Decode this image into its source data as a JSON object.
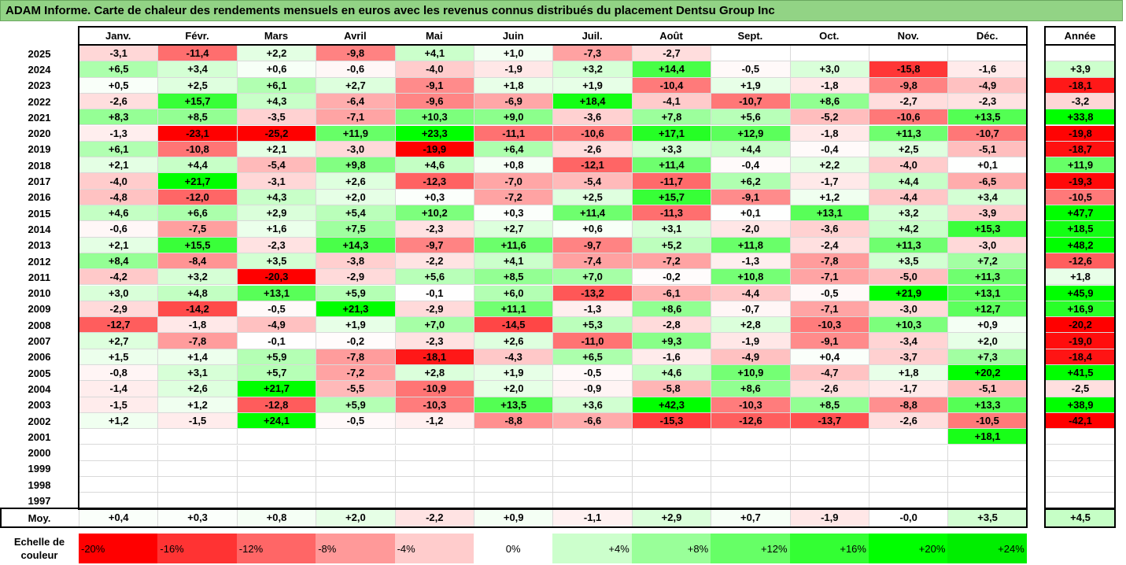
{
  "title": "ADAM Informe. Carte de chaleur des rendements mensuels en euros avec les revenus connus distribués du placement Dentsu Group Inc",
  "chart_data": {
    "type": "heatmap",
    "columns": [
      "Janv.",
      "Févr.",
      "Mars",
      "Avril",
      "Mai",
      "Juin",
      "Juil.",
      "Août",
      "Sept.",
      "Oct.",
      "Nov.",
      "Déc."
    ],
    "year_column_label": "Année",
    "average_label": "Moy.",
    "rows": [
      {
        "year": "2025",
        "months": [
          "-3,1",
          "-11,4",
          "+2,2",
          "-9,8",
          "+4,1",
          "+1,0",
          "-7,3",
          "-2,7",
          "",
          "",
          "",
          ""
        ],
        "annual": ""
      },
      {
        "year": "2024",
        "months": [
          "+6,5",
          "+3,4",
          "+0,6",
          "-0,6",
          "-4,0",
          "-1,9",
          "+3,2",
          "+14,4",
          "-0,5",
          "+3,0",
          "-15,8",
          "-1,6"
        ],
        "annual": "+3,9"
      },
      {
        "year": "2023",
        "months": [
          "+0,5",
          "+2,5",
          "+6,1",
          "+2,7",
          "-9,1",
          "+1,8",
          "+1,9",
          "-10,4",
          "+1,9",
          "-1,8",
          "-9,8",
          "-4,9"
        ],
        "annual": "-18,1"
      },
      {
        "year": "2022",
        "months": [
          "-2,6",
          "+15,7",
          "+4,3",
          "-6,4",
          "-9,6",
          "-6,9",
          "+18,4",
          "-4,1",
          "-10,7",
          "+8,6",
          "-2,7",
          "-2,3"
        ],
        "annual": "-3,2"
      },
      {
        "year": "2021",
        "months": [
          "+8,3",
          "+8,5",
          "-3,5",
          "-7,1",
          "+10,3",
          "+9,0",
          "-3,6",
          "+7,8",
          "+5,6",
          "-5,2",
          "-10,6",
          "+13,5"
        ],
        "annual": "+33,8"
      },
      {
        "year": "2020",
        "months": [
          "-1,3",
          "-23,1",
          "-25,2",
          "+11,9",
          "+23,3",
          "-11,1",
          "-10,6",
          "+17,1",
          "+12,9",
          "-1,8",
          "+11,3",
          "-10,7"
        ],
        "annual": "-19,8"
      },
      {
        "year": "2019",
        "months": [
          "+6,1",
          "-10,8",
          "+2,1",
          "-3,0",
          "-19,9",
          "+6,4",
          "-2,6",
          "+3,3",
          "+4,4",
          "-0,4",
          "+2,5",
          "-5,1"
        ],
        "annual": "-18,7"
      },
      {
        "year": "2018",
        "months": [
          "+2,1",
          "+4,4",
          "-5,4",
          "+9,8",
          "+4,6",
          "+0,8",
          "-12,1",
          "+11,4",
          "-0,4",
          "+2,2",
          "-4,0",
          "+0,1"
        ],
        "annual": "+11,9"
      },
      {
        "year": "2017",
        "months": [
          "-4,0",
          "+21,7",
          "-3,1",
          "+2,6",
          "-12,3",
          "-7,0",
          "-5,4",
          "-11,7",
          "+6,2",
          "-1,7",
          "+4,4",
          "-6,5"
        ],
        "annual": "-19,3"
      },
      {
        "year": "2016",
        "months": [
          "-4,8",
          "-12,0",
          "+4,3",
          "+2,0",
          "+0,3",
          "-7,2",
          "+2,5",
          "+15,7",
          "-9,1",
          "+1,2",
          "-4,4",
          "+3,4"
        ],
        "annual": "-10,5"
      },
      {
        "year": "2015",
        "months": [
          "+4,6",
          "+6,6",
          "+2,9",
          "+5,4",
          "+10,2",
          "+0,3",
          "+11,4",
          "-11,3",
          "+0,1",
          "+13,1",
          "+3,2",
          "-3,9"
        ],
        "annual": "+47,7"
      },
      {
        "year": "2014",
        "months": [
          "-0,6",
          "-7,5",
          "+1,6",
          "+7,5",
          "-2,3",
          "+2,7",
          "+0,6",
          "+3,1",
          "-2,0",
          "-3,6",
          "+4,2",
          "+15,3"
        ],
        "annual": "+18,5"
      },
      {
        "year": "2013",
        "months": [
          "+2,1",
          "+15,5",
          "-2,3",
          "+14,3",
          "-9,7",
          "+11,6",
          "-9,7",
          "+5,2",
          "+11,8",
          "-2,4",
          "+11,3",
          "-3,0"
        ],
        "annual": "+48,2"
      },
      {
        "year": "2012",
        "months": [
          "+8,4",
          "-8,4",
          "+3,5",
          "-3,8",
          "-2,2",
          "+4,1",
          "-7,4",
          "-7,2",
          "-1,3",
          "-7,8",
          "+3,5",
          "+7,2"
        ],
        "annual": "-12,6"
      },
      {
        "year": "2011",
        "months": [
          "-4,2",
          "+3,2",
          "-20,3",
          "-2,9",
          "+5,6",
          "+8,5",
          "+7,0",
          "-0,2",
          "+10,8",
          "-7,1",
          "-5,0",
          "+11,3"
        ],
        "annual": "+1,8"
      },
      {
        "year": "2010",
        "months": [
          "+3,0",
          "+4,8",
          "+13,1",
          "+5,9",
          "-0,1",
          "+6,0",
          "-13,2",
          "-6,1",
          "-4,4",
          "-0,5",
          "+21,9",
          "+13,1"
        ],
        "annual": "+45,9"
      },
      {
        "year": "2009",
        "months": [
          "-2,9",
          "-14,2",
          "-0,5",
          "+21,3",
          "-2,9",
          "+11,1",
          "-1,3",
          "+8,6",
          "-0,7",
          "-7,1",
          "-3,0",
          "+12,7"
        ],
        "annual": "+16,9"
      },
      {
        "year": "2008",
        "months": [
          "-12,7",
          "-1,8",
          "-4,9",
          "+1,9",
          "+7,0",
          "-14,5",
          "+5,3",
          "-2,8",
          "+2,8",
          "-10,3",
          "+10,3",
          "+0,9"
        ],
        "annual": "-20,2"
      },
      {
        "year": "2007",
        "months": [
          "+2,7",
          "-7,8",
          "-0,1",
          "-0,2",
          "-2,3",
          "+2,6",
          "-11,0",
          "+9,3",
          "-1,9",
          "-9,1",
          "-3,4",
          "+2,0"
        ],
        "annual": "-19,0"
      },
      {
        "year": "2006",
        "months": [
          "+1,5",
          "+1,4",
          "+5,9",
          "-7,8",
          "-18,1",
          "-4,3",
          "+6,5",
          "-1,6",
          "-4,9",
          "+0,4",
          "-3,7",
          "+7,3"
        ],
        "annual": "-18,4"
      },
      {
        "year": "2005",
        "months": [
          "-0,8",
          "+3,1",
          "+5,7",
          "-7,2",
          "+2,8",
          "+1,9",
          "-0,5",
          "+4,6",
          "+10,9",
          "-4,7",
          "+1,8",
          "+20,2"
        ],
        "annual": "+41,5"
      },
      {
        "year": "2004",
        "months": [
          "-1,4",
          "+2,6",
          "+21,7",
          "-5,5",
          "-10,9",
          "+2,0",
          "-0,9",
          "-5,8",
          "+8,6",
          "-2,6",
          "-1,7",
          "-5,1"
        ],
        "annual": "-2,5"
      },
      {
        "year": "2003",
        "months": [
          "-1,5",
          "+1,2",
          "-12,8",
          "+5,9",
          "-10,3",
          "+13,5",
          "+3,6",
          "+42,3",
          "-10,3",
          "+8,5",
          "-8,8",
          "+13,3"
        ],
        "annual": "+38,9"
      },
      {
        "year": "2002",
        "months": [
          "+1,2",
          "-1,5",
          "+24,1",
          "-0,5",
          "-1,2",
          "-8,8",
          "-6,6",
          "-15,3",
          "-12,6",
          "-13,7",
          "-2,6",
          "-10,5"
        ],
        "annual": "-42,1"
      },
      {
        "year": "2001",
        "months": [
          "",
          "",
          "",
          "",
          "",
          "",
          "",
          "",
          "",
          "",
          "",
          "+18,1"
        ],
        "annual": ""
      },
      {
        "year": "2000",
        "months": [
          "",
          "",
          "",
          "",
          "",
          "",
          "",
          "",
          "",
          "",
          "",
          ""
        ],
        "annual": ""
      },
      {
        "year": "1999",
        "months": [
          "",
          "",
          "",
          "",
          "",
          "",
          "",
          "",
          "",
          "",
          "",
          ""
        ],
        "annual": ""
      },
      {
        "year": "1998",
        "months": [
          "",
          "",
          "",
          "",
          "",
          "",
          "",
          "",
          "",
          "",
          "",
          ""
        ],
        "annual": ""
      },
      {
        "year": "1997",
        "months": [
          "",
          "",
          "",
          "",
          "",
          "",
          "",
          "",
          "",
          "",
          "",
          ""
        ],
        "annual": ""
      }
    ],
    "average": {
      "months": [
        "+0,4",
        "+0,3",
        "+0,8",
        "+2,0",
        "-2,2",
        "+0,9",
        "-1,1",
        "+2,9",
        "+0,7",
        "-1,9",
        "-0,0",
        "+3,5"
      ],
      "annual": "+4,5"
    },
    "scale_label": "Echelle de couleur",
    "scale": [
      {
        "label": "-20%",
        "value": -20,
        "color": "#ff0000"
      },
      {
        "label": "-16%",
        "value": -16,
        "color": "#ff3333"
      },
      {
        "label": "-12%",
        "value": -12,
        "color": "#ff6666"
      },
      {
        "label": "-8%",
        "value": -8,
        "color": "#ff9999"
      },
      {
        "label": "-4%",
        "value": -4,
        "color": "#ffcccc"
      },
      {
        "label": "0%",
        "value": 0,
        "color": "#ffffff"
      },
      {
        "label": "+4%",
        "value": 4,
        "color": "#ccffcc"
      },
      {
        "label": "+8%",
        "value": 8,
        "color": "#99ff99"
      },
      {
        "label": "+12%",
        "value": 12,
        "color": "#66ff66"
      },
      {
        "label": "+16%",
        "value": 16,
        "color": "#33ff33"
      },
      {
        "label": "+20%",
        "value": 20,
        "color": "#00ff00"
      },
      {
        "label": "+24%",
        "value": 24,
        "color": "#00ee00"
      }
    ]
  }
}
